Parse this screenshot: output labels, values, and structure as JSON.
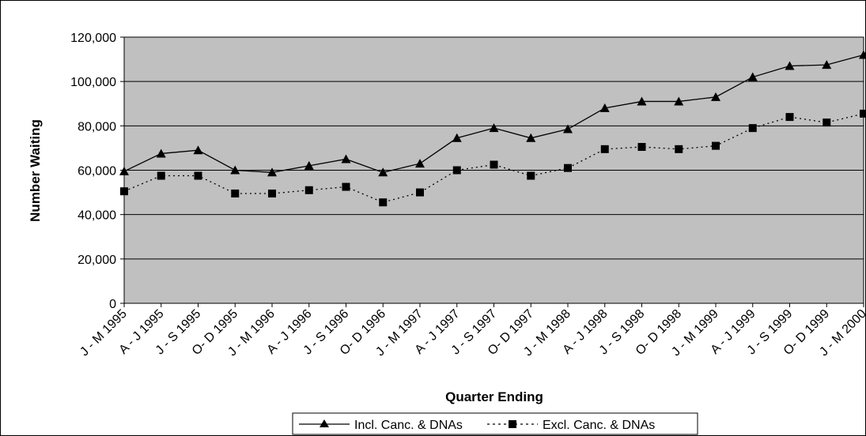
{
  "chart_data": {
    "type": "line",
    "title": "",
    "xlabel": "Quarter Ending",
    "ylabel": "Number Waiting",
    "categories": [
      "J - M 1995",
      "A - J 1995",
      "J - S 1995",
      "O- D 1995",
      "J - M 1996",
      "A - J 1996",
      "J - S 1996",
      "O- D 1996",
      "J - M 1997",
      "A - J 1997",
      "J - S 1997",
      "O- D 1997",
      "J - M 1998",
      "A - J 1998",
      "J - S 1998",
      "O- D 1998",
      "J - M 1999",
      "A - J 1999",
      "J - S 1999",
      "O- D 1999",
      "J - M 2000"
    ],
    "series": [
      {
        "name": "Incl. Canc. & DNAs",
        "marker": "triangle",
        "line_style": "solid",
        "values": [
          59500,
          67500,
          69000,
          60000,
          59000,
          62000,
          65000,
          59000,
          63000,
          74500,
          79000,
          74500,
          78500,
          88000,
          91000,
          91000,
          93000,
          102000,
          107000,
          107500,
          112000
        ]
      },
      {
        "name": "Excl. Canc. & DNAs",
        "marker": "square",
        "line_style": "dotted",
        "values": [
          50500,
          57500,
          57500,
          49500,
          49500,
          51000,
          52500,
          45500,
          50000,
          60000,
          62500,
          57500,
          61000,
          69500,
          70500,
          69500,
          71000,
          79000,
          84000,
          81500,
          85500
        ]
      }
    ],
    "yticks": [
      0,
      20000,
      40000,
      60000,
      80000,
      100000,
      120000
    ],
    "ytick_labels": [
      "0",
      "20,000",
      "40,000",
      "60,000",
      "80,000",
      "100,000",
      "120,000"
    ],
    "ylim": [
      0,
      120000
    ],
    "grid": "horizontal",
    "legend_position": "bottom-center",
    "colors": {
      "plot_background": "#c0c0c0",
      "gridline": "#000000",
      "series_line": "#000000",
      "marker": "#000000",
      "border": "#000000"
    }
  }
}
